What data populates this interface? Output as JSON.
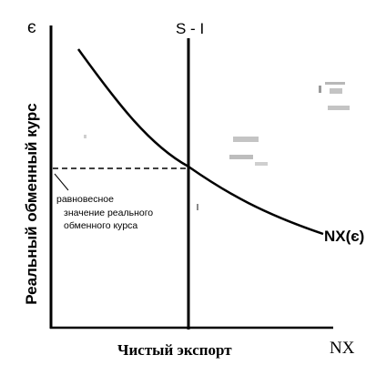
{
  "diagram": {
    "y_axis_symbol": "є",
    "y_axis_label": "Реальный обменный курс",
    "x_axis_label": "Чистый экспорт",
    "x_axis_symbol": "NX",
    "vertical_line_label": "S - I",
    "curve_label": "NX(є)",
    "equilibrium_note": [
      "равновесное",
      "значение реального",
      "обменного курса"
    ]
  }
}
